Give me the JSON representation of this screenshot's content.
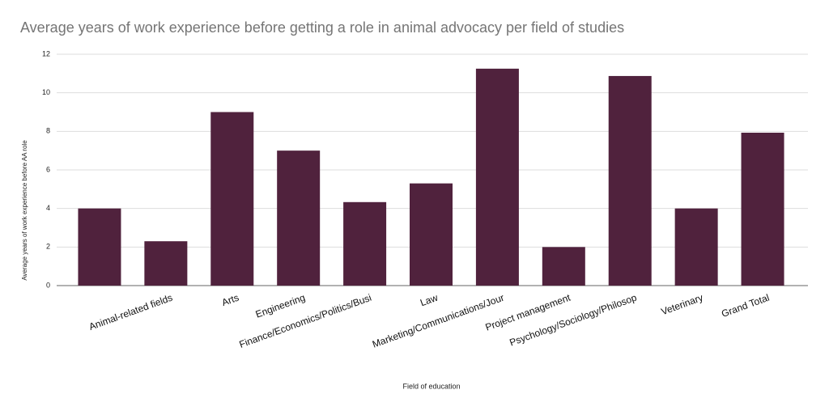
{
  "chart_data": {
    "type": "bar",
    "title": "Average years of work experience before getting a role in animal advocacy per field of studies",
    "x_label": "Field of education",
    "y_label": "Average years of work experience before AA role",
    "categories": [
      null,
      "Animal-related fields",
      "Arts",
      "Engineering",
      "Finance/Economics/Politics/Busi",
      "Law",
      "Marketing/Communications/Jour",
      "Project management",
      "Psychology/Sociology/Philosop",
      "Veterinary",
      "Grand Total"
    ],
    "values": [
      4,
      2.3,
      9,
      7,
      4.33,
      5.3,
      11.25,
      2,
      10.87,
      4,
      7.93
    ],
    "color": "#50223d",
    "ylim": [
      0,
      12
    ],
    "yticks": [
      0,
      2,
      4,
      6,
      8,
      10,
      12
    ],
    "grid": true
  }
}
